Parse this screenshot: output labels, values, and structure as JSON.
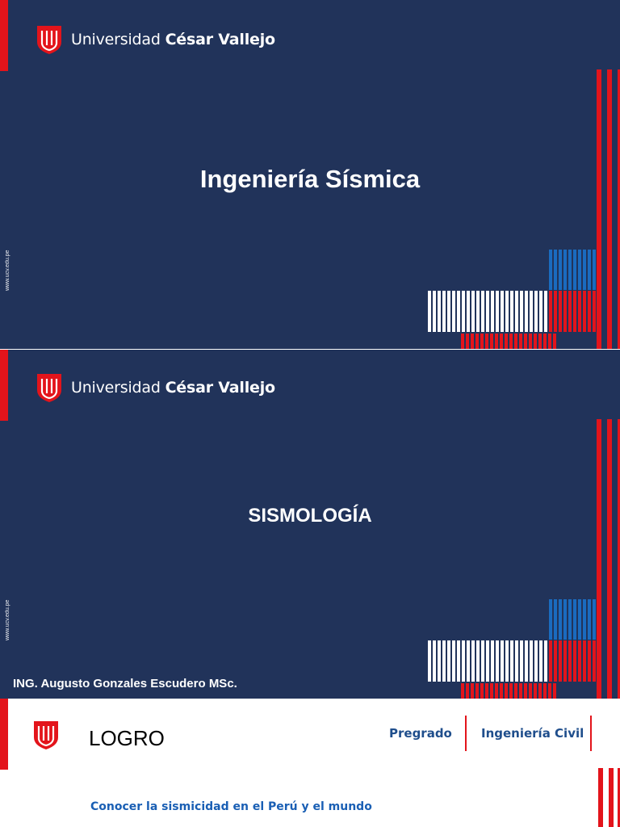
{
  "colors": {
    "navy": "#21335a",
    "red": "#e3141b",
    "blue": "#1a6bbf",
    "white": "#ffffff",
    "text_blue": "#1f4e8c"
  },
  "slide1": {
    "brand_regular": "Universidad ",
    "brand_bold": "César Vallejo",
    "url": "www.ucv.edu.pe",
    "title": "Ingeniería Sísmica",
    "logo_icon": "ucv-shield-icon"
  },
  "slide2": {
    "brand_regular": "Universidad ",
    "brand_bold": "César Vallejo",
    "url": "www.ucv.edu.pe",
    "title": "SISMOLOGÍA",
    "author": "ING. Augusto Gonzales Escudero MSc.",
    "logo_icon": "ucv-shield-icon"
  },
  "slide3": {
    "heading": "LOGRO",
    "tag1": "Pregrado",
    "tag2": "Ingeniería Civil",
    "goal": "Conocer la sismicidad en el Perú y el mundo",
    "logo_icon": "ucv-shield-icon"
  }
}
